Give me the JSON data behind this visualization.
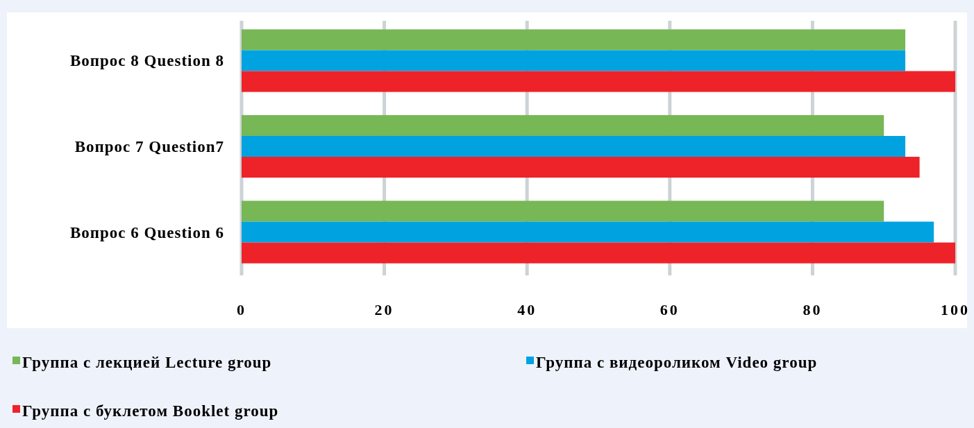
{
  "chart_data": {
    "type": "bar",
    "orientation": "horizontal",
    "categories": [
      "Вопрос 8 Question 8",
      "Вопрос 7 Question7",
      "Вопрос 6 Question 6"
    ],
    "series": [
      {
        "name": "Группа с лекцией Lecture group",
        "color": "#77b755",
        "values": [
          93,
          90,
          90
        ]
      },
      {
        "name": "Группа с видеороликом Video group",
        "color": "#00a2e0",
        "values": [
          93,
          93,
          97
        ]
      },
      {
        "name": "Группа с буклетом Booklet group",
        "color": "#ee2229",
        "values": [
          100,
          95,
          100
        ]
      }
    ],
    "xlim": [
      0,
      100
    ],
    "xticks": [
      0,
      20,
      40,
      60,
      80,
      100
    ],
    "grid": "x",
    "legend": "bottom"
  }
}
